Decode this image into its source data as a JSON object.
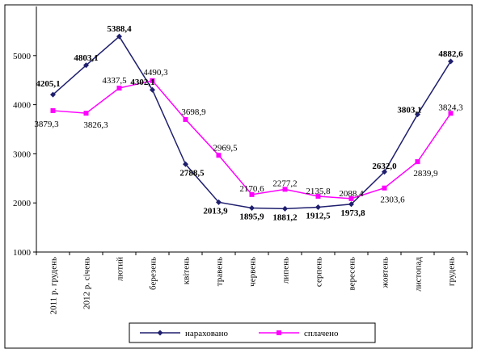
{
  "chart_data": {
    "type": "line",
    "categories": [
      "2011 р. грудень",
      "2012 р. січень",
      "лютий",
      "березень",
      "квітень",
      "травень",
      "червень",
      "липень",
      "серпень",
      "вересень",
      "жовтень",
      "листопад",
      "грудень"
    ],
    "ylim": [
      1000,
      6000
    ],
    "yticks": [
      "1000",
      "2000",
      "3000",
      "4000",
      "5000"
    ],
    "grid": false,
    "legend_position": "bottom",
    "series": [
      {
        "name": "нараховано",
        "color": "#1f1f6e",
        "marker": "diamond",
        "values": [
          4205.1,
          4803.1,
          5388.4,
          4302.1,
          2788.5,
          2013.9,
          1895.9,
          1881.2,
          1912.5,
          1973.8,
          2632.0,
          3803.1,
          4882.6
        ],
        "labels": [
          "4205,1",
          "4803,1",
          "5388,4",
          "4302,1",
          "2788,5",
          "2013,9",
          "1895,9",
          "1881,2",
          "1912,5",
          "1973,8",
          "2632,0",
          "3803,1",
          "4882,6"
        ]
      },
      {
        "name": "сплачено",
        "color": "#ff00ff",
        "marker": "square",
        "values": [
          3879.3,
          3826.3,
          4337.5,
          4490.3,
          3698.9,
          2969.5,
          2170.6,
          2277.2,
          2135.8,
          2088.4,
          2303.6,
          2839.9,
          3824.3
        ],
        "labels": [
          "3879,3",
          "3826,3",
          "4337,5",
          "4490,3",
          "3698,9",
          "2969,5",
          "2170,6",
          "2277,2",
          "2135,8",
          "2088,4",
          "2303,6",
          "2839,9",
          "3824,3"
        ]
      }
    ]
  }
}
